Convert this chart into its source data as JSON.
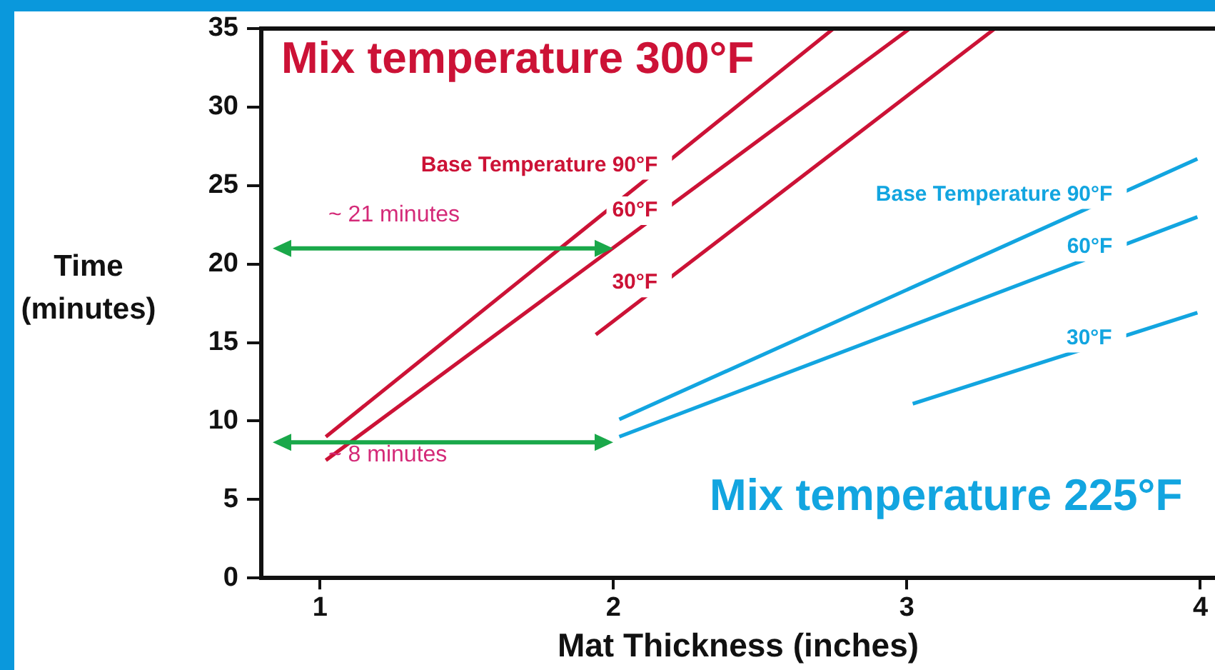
{
  "chart_data": {
    "type": "line",
    "xlabel": "Mat Thickness (inches)",
    "ylabel": "Time (minutes)",
    "xlim": [
      0.8,
      4.05
    ],
    "xticks": [
      1,
      2,
      3,
      4
    ],
    "ylim": [
      0,
      35
    ],
    "yticks": [
      0,
      5,
      10,
      15,
      20,
      25,
      30,
      35
    ],
    "series": [
      {
        "name": "Base Temperature 90°F",
        "color": "#cc1236",
        "x": [
          1.02,
          2.75
        ],
        "values": [
          9,
          35
        ]
      },
      {
        "name": "60°F",
        "color": "#cc1236",
        "x": [
          1.02,
          3.01
        ],
        "values": [
          7.5,
          35
        ]
      },
      {
        "name": "30°F",
        "color": "#cc1236",
        "x": [
          1.94,
          3.3
        ],
        "values": [
          15.5,
          35
        ]
      },
      {
        "name": "Base Temperature 90°F",
        "color": "#12a5e0",
        "x": [
          2.02,
          3.99
        ],
        "values": [
          10.1,
          26.7
        ]
      },
      {
        "name": "60°F",
        "color": "#12a5e0",
        "x": [
          2.02,
          3.99
        ],
        "values": [
          9,
          23
        ]
      },
      {
        "name": "30°F",
        "color": "#12a5e0",
        "x": [
          3.02,
          3.99
        ],
        "values": [
          11.1,
          16.9
        ]
      }
    ],
    "annotations": [
      "Mix temperature 300°F",
      "Mix temperature 225°F",
      "~ 21 minutes",
      "~ 8 minutes"
    ],
    "legend": false,
    "marker": "none",
    "line_style": "solid"
  }
}
